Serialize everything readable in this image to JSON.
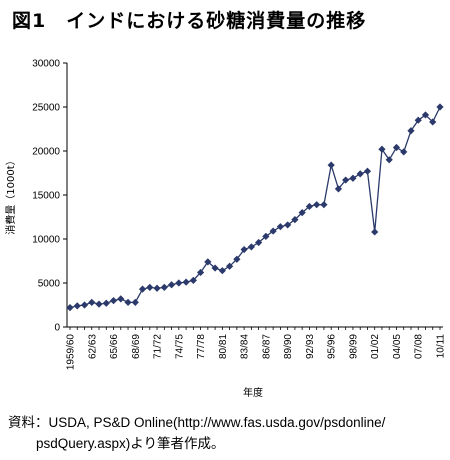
{
  "chart_data": {
    "type": "line",
    "title": "図1　インドにおける砂糖消費量の推移",
    "ylabel": "消費量（1000t）",
    "xlabel": "年度",
    "ylim": [
      0,
      30000
    ],
    "yticks": [
      "0",
      "5000",
      "10000",
      "15000",
      "20000",
      "25000",
      "30000"
    ],
    "grid": false,
    "legend": "none",
    "marker": "diamond",
    "color": "#2b3a6b",
    "x": [
      "1959/60",
      "60/61",
      "61/62",
      "62/63",
      "63/64",
      "64/65",
      "65/66",
      "66/67",
      "67/68",
      "68/69",
      "69/70",
      "70/71",
      "71/72",
      "72/73",
      "73/74",
      "74/75",
      "75/76",
      "76/77",
      "77/78",
      "78/79",
      "79/80",
      "80/81",
      "81/82",
      "82/83",
      "83/84",
      "84/85",
      "85/86",
      "86/87",
      "87/88",
      "88/89",
      "89/90",
      "90/91",
      "91/92",
      "92/93",
      "93/94",
      "94/95",
      "95/96",
      "96/97",
      "97/98",
      "98/99",
      "99/00",
      "00/01",
      "01/02",
      "02/03",
      "03/04",
      "04/05",
      "05/06",
      "06/07",
      "07/08",
      "08/09",
      "09/10",
      "10/11"
    ],
    "xtick_labels": [
      "1959/60",
      "62/63",
      "65/66",
      "68/69",
      "71/72",
      "74/75",
      "77/78",
      "80/81",
      "83/84",
      "86/87",
      "89/90",
      "92/93",
      "95/96",
      "98/99",
      "01/02",
      "04/05",
      "07/08",
      "10/11"
    ],
    "values": [
      2200,
      2400,
      2500,
      2800,
      2600,
      2700,
      3000,
      3200,
      2800,
      2800,
      4300,
      4500,
      4400,
      4500,
      4800,
      5000,
      5100,
      5300,
      6200,
      7400,
      6700,
      6400,
      6900,
      7700,
      8800,
      9100,
      9600,
      10300,
      10900,
      11400,
      11600,
      12200,
      13000,
      13700,
      13900,
      13900,
      18400,
      15700,
      16700,
      16900,
      17400,
      17700,
      10800,
      20200,
      19000,
      20400,
      19900,
      22300,
      23500,
      24100,
      23300,
      25000
    ]
  },
  "source": {
    "line1": "資料：USDA, PS&D Online(http://www.fas.usda.gov/psdonline/",
    "line2": "psdQuery.aspx)より筆者作成。"
  }
}
